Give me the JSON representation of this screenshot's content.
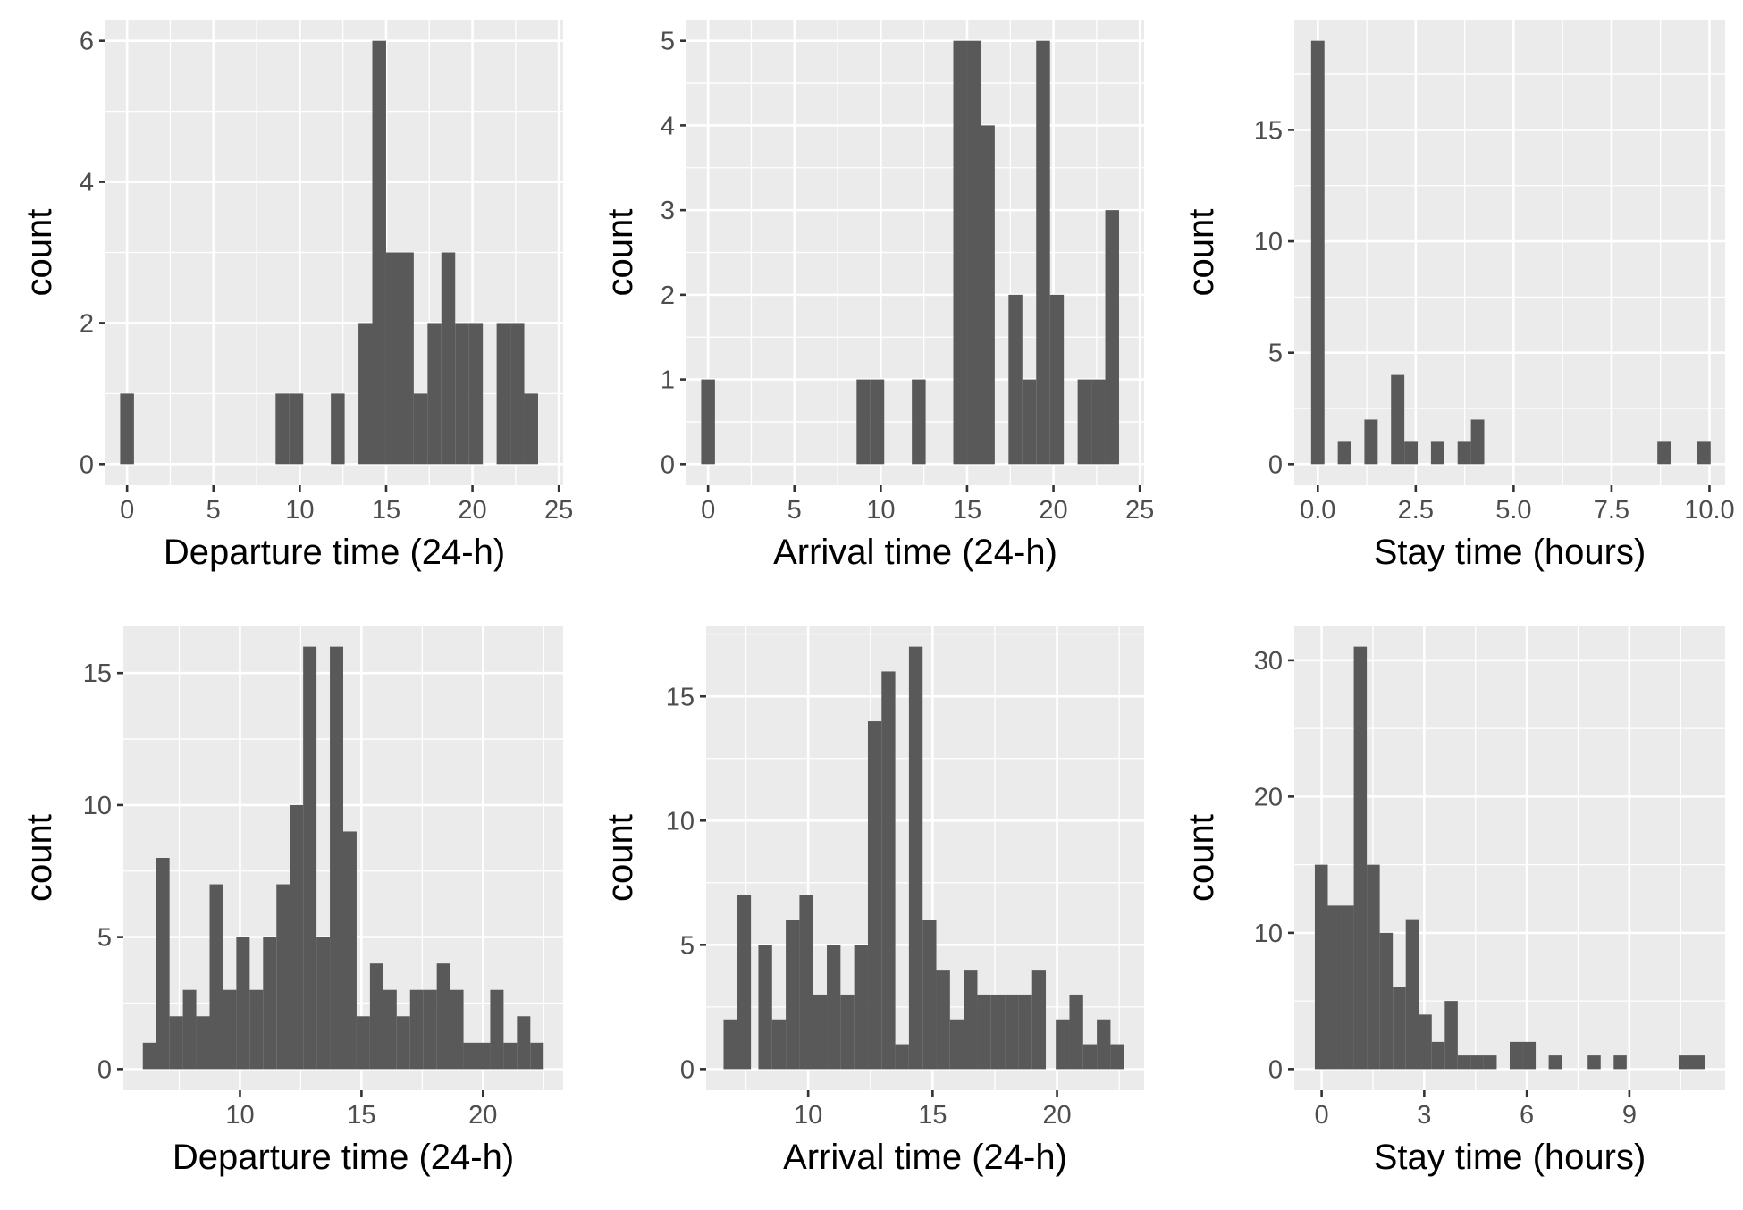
{
  "chart_data": [
    {
      "type": "bar",
      "xlabel": "Departure time (24-h)",
      "ylabel": "count",
      "xlim": [
        -1.25,
        25.25
      ],
      "ylim": [
        -0.3,
        6.3
      ],
      "xticks": [
        0,
        5,
        10,
        15,
        20,
        25
      ],
      "xtick_labels": [
        "0",
        "5",
        "10",
        "15",
        "20",
        "25"
      ],
      "yticks": [
        0,
        2,
        4,
        6
      ],
      "ytick_labels": [
        "0",
        "2",
        "4",
        "6"
      ],
      "bins": [
        {
          "x0": -0.4,
          "x1": 0.4,
          "count": 1
        },
        {
          "x0": 8.6,
          "x1": 9.4,
          "count": 1
        },
        {
          "x0": 9.4,
          "x1": 10.2,
          "count": 1
        },
        {
          "x0": 11.8,
          "x1": 12.6,
          "count": 1
        },
        {
          "x0": 13.4,
          "x1": 14.2,
          "count": 2
        },
        {
          "x0": 14.2,
          "x1": 15.0,
          "count": 6
        },
        {
          "x0": 15.0,
          "x1": 15.8,
          "count": 3
        },
        {
          "x0": 15.8,
          "x1": 16.6,
          "count": 3
        },
        {
          "x0": 16.6,
          "x1": 17.4,
          "count": 1
        },
        {
          "x0": 17.4,
          "x1": 18.2,
          "count": 2
        },
        {
          "x0": 18.2,
          "x1": 19.0,
          "count": 3
        },
        {
          "x0": 19.0,
          "x1": 19.8,
          "count": 2
        },
        {
          "x0": 19.8,
          "x1": 20.6,
          "count": 2
        },
        {
          "x0": 21.4,
          "x1": 22.2,
          "count": 2
        },
        {
          "x0": 22.2,
          "x1": 23.0,
          "count": 2
        },
        {
          "x0": 23.0,
          "x1": 23.8,
          "count": 1
        }
      ]
    },
    {
      "type": "bar",
      "xlabel": "Arrival time (24-h)",
      "ylabel": "count",
      "xlim": [
        -1.25,
        25.25
      ],
      "ylim": [
        -0.25,
        5.25
      ],
      "xticks": [
        0,
        5,
        10,
        15,
        20,
        25
      ],
      "xtick_labels": [
        "0",
        "5",
        "10",
        "15",
        "20",
        "25"
      ],
      "yticks": [
        0,
        1,
        2,
        3,
        4,
        5
      ],
      "ytick_labels": [
        "0",
        "1",
        "2",
        "3",
        "4",
        "5"
      ],
      "bins": [
        {
          "x0": -0.4,
          "x1": 0.4,
          "count": 1
        },
        {
          "x0": 8.6,
          "x1": 9.4,
          "count": 1
        },
        {
          "x0": 9.4,
          "x1": 10.2,
          "count": 1
        },
        {
          "x0": 11.8,
          "x1": 12.6,
          "count": 1
        },
        {
          "x0": 14.2,
          "x1": 15.0,
          "count": 5
        },
        {
          "x0": 15.0,
          "x1": 15.8,
          "count": 5
        },
        {
          "x0": 15.8,
          "x1": 16.6,
          "count": 4
        },
        {
          "x0": 17.4,
          "x1": 18.2,
          "count": 2
        },
        {
          "x0": 18.2,
          "x1": 19.0,
          "count": 1
        },
        {
          "x0": 19.0,
          "x1": 19.8,
          "count": 5
        },
        {
          "x0": 19.8,
          "x1": 20.6,
          "count": 2
        },
        {
          "x0": 21.4,
          "x1": 22.2,
          "count": 1
        },
        {
          "x0": 22.2,
          "x1": 23.0,
          "count": 1
        },
        {
          "x0": 23.0,
          "x1": 23.8,
          "count": 3
        }
      ]
    },
    {
      "type": "bar",
      "xlabel": "Stay time (hours)",
      "ylabel": "count",
      "xlim": [
        -0.6,
        10.4
      ],
      "ylim": [
        -0.95,
        19.95
      ],
      "xticks": [
        0,
        2.5,
        5,
        7.5,
        10
      ],
      "xtick_labels": [
        "0.0",
        "2.5",
        "5.0",
        "7.5",
        "10.0"
      ],
      "yticks": [
        0,
        5,
        10,
        15
      ],
      "ytick_labels": [
        "0",
        "5",
        "10",
        "15"
      ],
      "bins": [
        {
          "x0": -0.17,
          "x1": 0.17,
          "count": 19
        },
        {
          "x0": 0.51,
          "x1": 0.85,
          "count": 1
        },
        {
          "x0": 1.19,
          "x1": 1.53,
          "count": 2
        },
        {
          "x0": 1.87,
          "x1": 2.21,
          "count": 4
        },
        {
          "x0": 2.21,
          "x1": 2.55,
          "count": 1
        },
        {
          "x0": 2.89,
          "x1": 3.23,
          "count": 1
        },
        {
          "x0": 3.57,
          "x1": 3.91,
          "count": 1
        },
        {
          "x0": 3.91,
          "x1": 4.25,
          "count": 2
        },
        {
          "x0": 8.67,
          "x1": 9.01,
          "count": 1
        },
        {
          "x0": 9.69,
          "x1": 10.03,
          "count": 1
        }
      ]
    },
    {
      "type": "bar",
      "xlabel": "Departure time (24-h)",
      "ylabel": "count",
      "xlim": [
        5.2,
        23.3
      ],
      "ylim": [
        -0.8,
        16.8
      ],
      "xticks": [
        10,
        15,
        20
      ],
      "xtick_labels": [
        "10",
        "15",
        "20"
      ],
      "yticks": [
        0,
        5,
        10,
        15
      ],
      "ytick_labels": [
        "0",
        "5",
        "10",
        "15"
      ],
      "bins": [
        {
          "x0": 6.0,
          "x1": 6.55,
          "count": 1
        },
        {
          "x0": 6.55,
          "x1": 7.1,
          "count": 8
        },
        {
          "x0": 7.1,
          "x1": 7.65,
          "count": 2
        },
        {
          "x0": 7.65,
          "x1": 8.2,
          "count": 3
        },
        {
          "x0": 8.2,
          "x1": 8.75,
          "count": 2
        },
        {
          "x0": 8.75,
          "x1": 9.3,
          "count": 7
        },
        {
          "x0": 9.3,
          "x1": 9.85,
          "count": 3
        },
        {
          "x0": 9.85,
          "x1": 10.4,
          "count": 5
        },
        {
          "x0": 10.4,
          "x1": 10.95,
          "count": 3
        },
        {
          "x0": 10.95,
          "x1": 11.5,
          "count": 5
        },
        {
          "x0": 11.5,
          "x1": 12.05,
          "count": 7
        },
        {
          "x0": 12.05,
          "x1": 12.6,
          "count": 10
        },
        {
          "x0": 12.6,
          "x1": 13.15,
          "count": 16
        },
        {
          "x0": 13.15,
          "x1": 13.7,
          "count": 5
        },
        {
          "x0": 13.7,
          "x1": 14.25,
          "count": 16
        },
        {
          "x0": 14.25,
          "x1": 14.8,
          "count": 9
        },
        {
          "x0": 14.8,
          "x1": 15.35,
          "count": 2
        },
        {
          "x0": 15.35,
          "x1": 15.9,
          "count": 4
        },
        {
          "x0": 15.9,
          "x1": 16.45,
          "count": 3
        },
        {
          "x0": 16.45,
          "x1": 17.0,
          "count": 2
        },
        {
          "x0": 17.0,
          "x1": 17.55,
          "count": 3
        },
        {
          "x0": 17.55,
          "x1": 18.1,
          "count": 3
        },
        {
          "x0": 18.1,
          "x1": 18.65,
          "count": 4
        },
        {
          "x0": 18.65,
          "x1": 19.2,
          "count": 3
        },
        {
          "x0": 19.2,
          "x1": 19.75,
          "count": 1
        },
        {
          "x0": 19.75,
          "x1": 20.3,
          "count": 1
        },
        {
          "x0": 20.3,
          "x1": 20.85,
          "count": 3
        },
        {
          "x0": 20.85,
          "x1": 21.4,
          "count": 1
        },
        {
          "x0": 21.4,
          "x1": 21.95,
          "count": 2
        },
        {
          "x0": 21.95,
          "x1": 22.5,
          "count": 1
        }
      ]
    },
    {
      "type": "bar",
      "xlabel": "Arrival time (24-h)",
      "ylabel": "count",
      "xlim": [
        5.9,
        23.5
      ],
      "ylim": [
        -0.85,
        17.85
      ],
      "xticks": [
        10,
        15,
        20
      ],
      "xtick_labels": [
        "10",
        "15",
        "20"
      ],
      "yticks": [
        0,
        5,
        10,
        15
      ],
      "ytick_labels": [
        "0",
        "5",
        "10",
        "15"
      ],
      "bins": [
        {
          "x0": 6.6,
          "x1": 7.15,
          "count": 2
        },
        {
          "x0": 7.15,
          "x1": 7.7,
          "count": 7
        },
        {
          "x0": 8.0,
          "x1": 8.55,
          "count": 5
        },
        {
          "x0": 8.55,
          "x1": 9.1,
          "count": 2
        },
        {
          "x0": 9.1,
          "x1": 9.65,
          "count": 6
        },
        {
          "x0": 9.65,
          "x1": 10.2,
          "count": 7
        },
        {
          "x0": 10.2,
          "x1": 10.75,
          "count": 3
        },
        {
          "x0": 10.75,
          "x1": 11.3,
          "count": 5
        },
        {
          "x0": 11.3,
          "x1": 11.85,
          "count": 3
        },
        {
          "x0": 11.85,
          "x1": 12.4,
          "count": 5
        },
        {
          "x0": 12.4,
          "x1": 12.95,
          "count": 14
        },
        {
          "x0": 12.95,
          "x1": 13.5,
          "count": 16
        },
        {
          "x0": 13.5,
          "x1": 14.05,
          "count": 1
        },
        {
          "x0": 14.05,
          "x1": 14.6,
          "count": 17
        },
        {
          "x0": 14.6,
          "x1": 15.15,
          "count": 6
        },
        {
          "x0": 15.15,
          "x1": 15.7,
          "count": 4
        },
        {
          "x0": 15.7,
          "x1": 16.25,
          "count": 2
        },
        {
          "x0": 16.25,
          "x1": 16.8,
          "count": 4
        },
        {
          "x0": 16.8,
          "x1": 17.35,
          "count": 3
        },
        {
          "x0": 17.35,
          "x1": 17.9,
          "count": 3
        },
        {
          "x0": 17.9,
          "x1": 18.45,
          "count": 3
        },
        {
          "x0": 18.45,
          "x1": 19.0,
          "count": 3
        },
        {
          "x0": 19.0,
          "x1": 19.55,
          "count": 4
        },
        {
          "x0": 19.95,
          "x1": 20.5,
          "count": 2
        },
        {
          "x0": 20.5,
          "x1": 21.05,
          "count": 3
        },
        {
          "x0": 21.05,
          "x1": 21.6,
          "count": 1
        },
        {
          "x0": 21.6,
          "x1": 22.15,
          "count": 2
        },
        {
          "x0": 22.15,
          "x1": 22.7,
          "count": 1
        }
      ]
    },
    {
      "type": "bar",
      "xlabel": "Stay time (hours)",
      "ylabel": "count",
      "xlim": [
        -0.8,
        11.8
      ],
      "ylim": [
        -1.55,
        32.55
      ],
      "xticks": [
        0,
        3,
        6,
        9
      ],
      "xtick_labels": [
        "0",
        "3",
        "6",
        "9"
      ],
      "yticks": [
        0,
        10,
        20,
        30
      ],
      "ytick_labels": [
        "0",
        "10",
        "20",
        "30"
      ],
      "bins": [
        {
          "x0": -0.2,
          "x1": 0.18,
          "count": 15
        },
        {
          "x0": 0.18,
          "x1": 0.56,
          "count": 12
        },
        {
          "x0": 0.56,
          "x1": 0.94,
          "count": 12
        },
        {
          "x0": 0.94,
          "x1": 1.32,
          "count": 31
        },
        {
          "x0": 1.32,
          "x1": 1.7,
          "count": 15
        },
        {
          "x0": 1.7,
          "x1": 2.08,
          "count": 10
        },
        {
          "x0": 2.08,
          "x1": 2.46,
          "count": 6
        },
        {
          "x0": 2.46,
          "x1": 2.84,
          "count": 11
        },
        {
          "x0": 2.84,
          "x1": 3.22,
          "count": 4
        },
        {
          "x0": 3.22,
          "x1": 3.6,
          "count": 2
        },
        {
          "x0": 3.6,
          "x1": 3.98,
          "count": 5
        },
        {
          "x0": 3.98,
          "x1": 4.36,
          "count": 1
        },
        {
          "x0": 4.36,
          "x1": 4.74,
          "count": 1
        },
        {
          "x0": 4.74,
          "x1": 5.12,
          "count": 1
        },
        {
          "x0": 5.5,
          "x1": 5.88,
          "count": 2
        },
        {
          "x0": 5.88,
          "x1": 6.26,
          "count": 2
        },
        {
          "x0": 6.64,
          "x1": 7.02,
          "count": 1
        },
        {
          "x0": 7.78,
          "x1": 8.16,
          "count": 1
        },
        {
          "x0": 8.54,
          "x1": 8.92,
          "count": 1
        },
        {
          "x0": 10.44,
          "x1": 10.82,
          "count": 1
        },
        {
          "x0": 10.82,
          "x1": 11.2,
          "count": 1
        }
      ]
    }
  ]
}
